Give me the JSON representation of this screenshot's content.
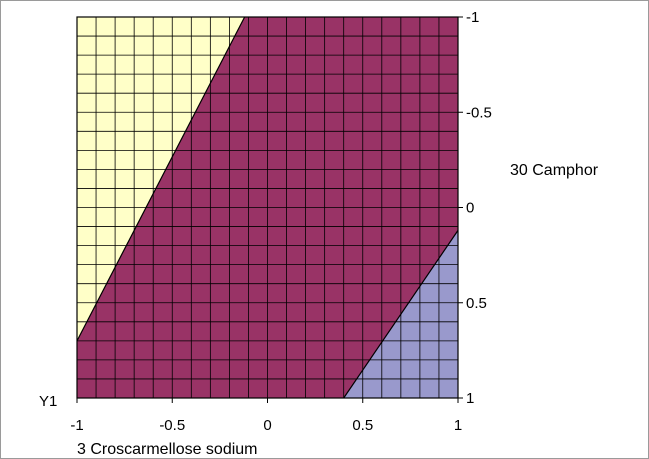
{
  "chart_data": {
    "type": "contour",
    "xlabel": "3 Croscarmellose sodium",
    "ylabel": "30 Camphor",
    "response_label": "Y1",
    "xlim": [
      -1,
      1
    ],
    "ylim": [
      -1,
      1
    ],
    "x_ticks": [
      "-1",
      "-0.5",
      "0",
      "0.5",
      "1"
    ],
    "y_ticks": [
      "-1",
      "-0.5",
      "0",
      "0.5",
      "1"
    ],
    "grid": true,
    "regions": [
      {
        "name": "upper-left",
        "color": "#FFFFC8",
        "vertices": [
          [
            -1,
            -1
          ],
          [
            -0.12,
            -1
          ],
          [
            -1,
            0.7
          ]
        ]
      },
      {
        "name": "middle",
        "color": "#993366",
        "vertices": [
          [
            -0.12,
            -1
          ],
          [
            1,
            -1
          ],
          [
            1,
            0.12
          ],
          [
            0.4,
            1
          ],
          [
            -1,
            1
          ],
          [
            -1,
            0.7
          ]
        ]
      },
      {
        "name": "lower-right",
        "color": "#9999CC",
        "vertices": [
          [
            1,
            0.12
          ],
          [
            1,
            1
          ],
          [
            0.4,
            1
          ]
        ]
      }
    ]
  }
}
